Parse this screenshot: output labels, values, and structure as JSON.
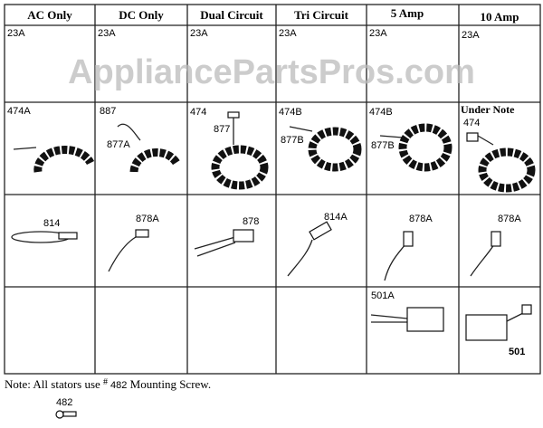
{
  "watermark": "AppliancePartsPros.com",
  "columns": [
    "AC Only",
    "DC Only",
    "Dual Circuit",
    "Tri Circuit",
    "5 Amp",
    "10 Amp"
  ],
  "row1": [
    "23A",
    "23A",
    "23A",
    "23A",
    "23A",
    "23A"
  ],
  "row2": [
    [
      "474A"
    ],
    [
      "887",
      "877A"
    ],
    [
      "474",
      "877"
    ],
    [
      "474B",
      "877B"
    ],
    [
      "474B",
      "877B"
    ],
    [
      "Under Note",
      "474"
    ]
  ],
  "row3": [
    "814",
    "878A",
    "878",
    "814A",
    "878A",
    "878A"
  ],
  "row4": [
    "",
    "",
    "",
    "",
    "501A",
    "501"
  ],
  "note": {
    "prefix": "Note: All stators use",
    "hash": "#",
    "part": "482",
    "suffix": "Mounting Screw."
  },
  "screw_label": "482"
}
